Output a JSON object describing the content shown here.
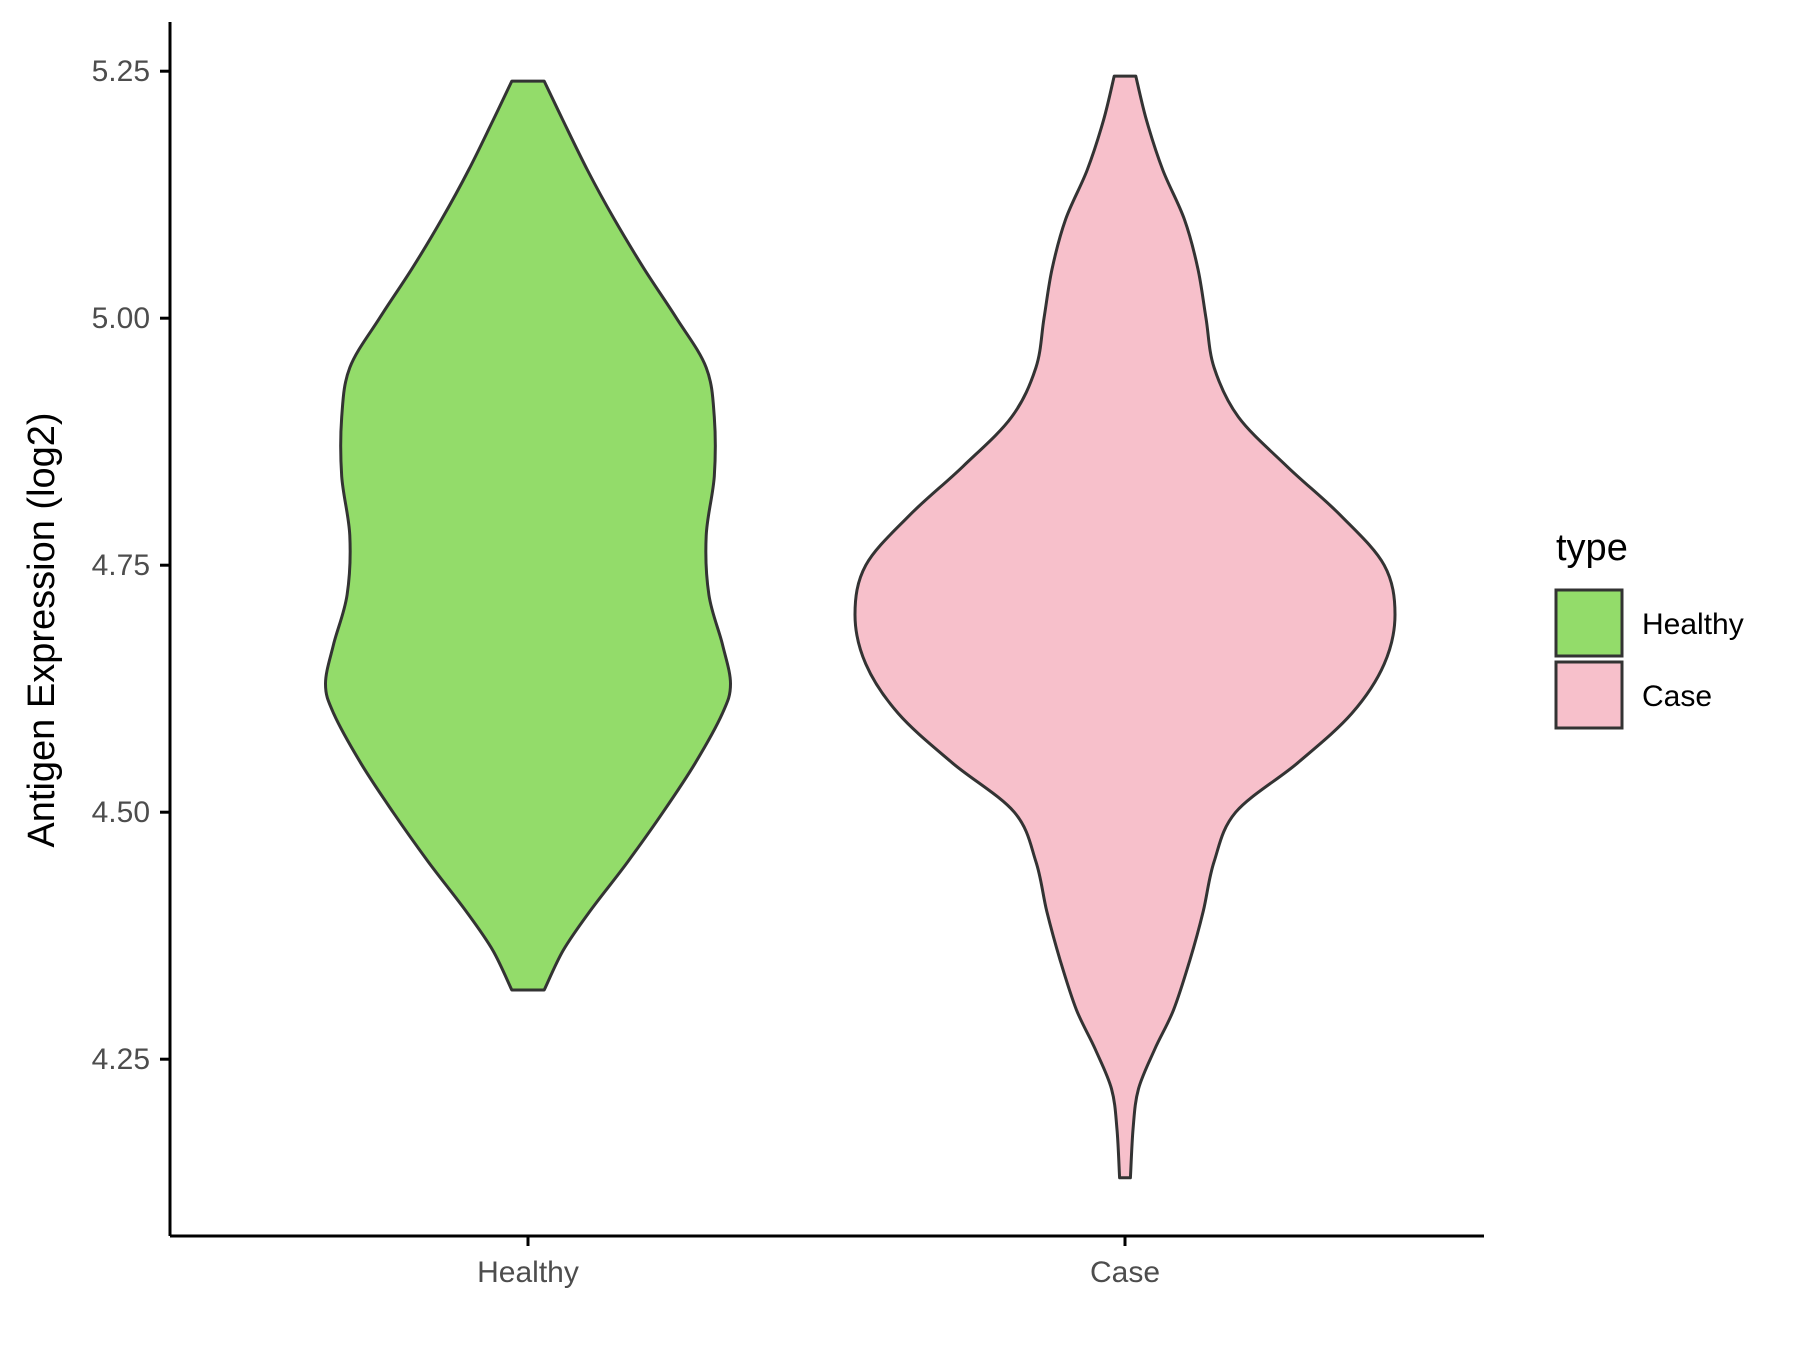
{
  "chart_data": {
    "type": "violin",
    "categories": [
      "Healthy",
      "Case"
    ],
    "xlabel": "",
    "ylabel": "Antigen Expression (log2)",
    "ylim": [
      4.1,
      5.3
    ],
    "yticks": [
      "4.25",
      "4.50",
      "4.75",
      "5.00",
      "5.25"
    ],
    "grid": false,
    "legend": {
      "title": "type",
      "placement": "right",
      "entries": [
        {
          "label": "Healthy",
          "color": "#93dc6a"
        },
        {
          "label": "Case",
          "color": "#f7c0cb"
        }
      ]
    },
    "series": [
      {
        "name": "Healthy",
        "color": "#93dc6a",
        "min": 4.32,
        "max": 5.24,
        "density_profile": [
          [
            4.32,
            0.06
          ],
          [
            4.36,
            0.13
          ],
          [
            4.4,
            0.23
          ],
          [
            4.45,
            0.37
          ],
          [
            4.5,
            0.5
          ],
          [
            4.55,
            0.62
          ],
          [
            4.6,
            0.72
          ],
          [
            4.63,
            0.75
          ],
          [
            4.67,
            0.72
          ],
          [
            4.72,
            0.67
          ],
          [
            4.78,
            0.66
          ],
          [
            4.84,
            0.69
          ],
          [
            4.9,
            0.69
          ],
          [
            4.95,
            0.66
          ],
          [
            5.0,
            0.55
          ],
          [
            5.05,
            0.43
          ],
          [
            5.1,
            0.32
          ],
          [
            5.15,
            0.22
          ],
          [
            5.2,
            0.13
          ],
          [
            5.24,
            0.06
          ]
        ]
      },
      {
        "name": "Case",
        "color": "#f7c0cb",
        "min": 4.13,
        "max": 5.245,
        "density_profile": [
          [
            4.13,
            0.02
          ],
          [
            4.18,
            0.03
          ],
          [
            4.22,
            0.05
          ],
          [
            4.26,
            0.11
          ],
          [
            4.3,
            0.18
          ],
          [
            4.35,
            0.24
          ],
          [
            4.4,
            0.29
          ],
          [
            4.45,
            0.33
          ],
          [
            4.5,
            0.41
          ],
          [
            4.55,
            0.64
          ],
          [
            4.6,
            0.84
          ],
          [
            4.65,
            0.96
          ],
          [
            4.7,
            1.0
          ],
          [
            4.75,
            0.96
          ],
          [
            4.8,
            0.8
          ],
          [
            4.85,
            0.6
          ],
          [
            4.9,
            0.42
          ],
          [
            4.95,
            0.33
          ],
          [
            5.0,
            0.3
          ],
          [
            5.05,
            0.27
          ],
          [
            5.1,
            0.22
          ],
          [
            5.15,
            0.14
          ],
          [
            5.2,
            0.08
          ],
          [
            5.245,
            0.04
          ]
        ]
      }
    ]
  }
}
